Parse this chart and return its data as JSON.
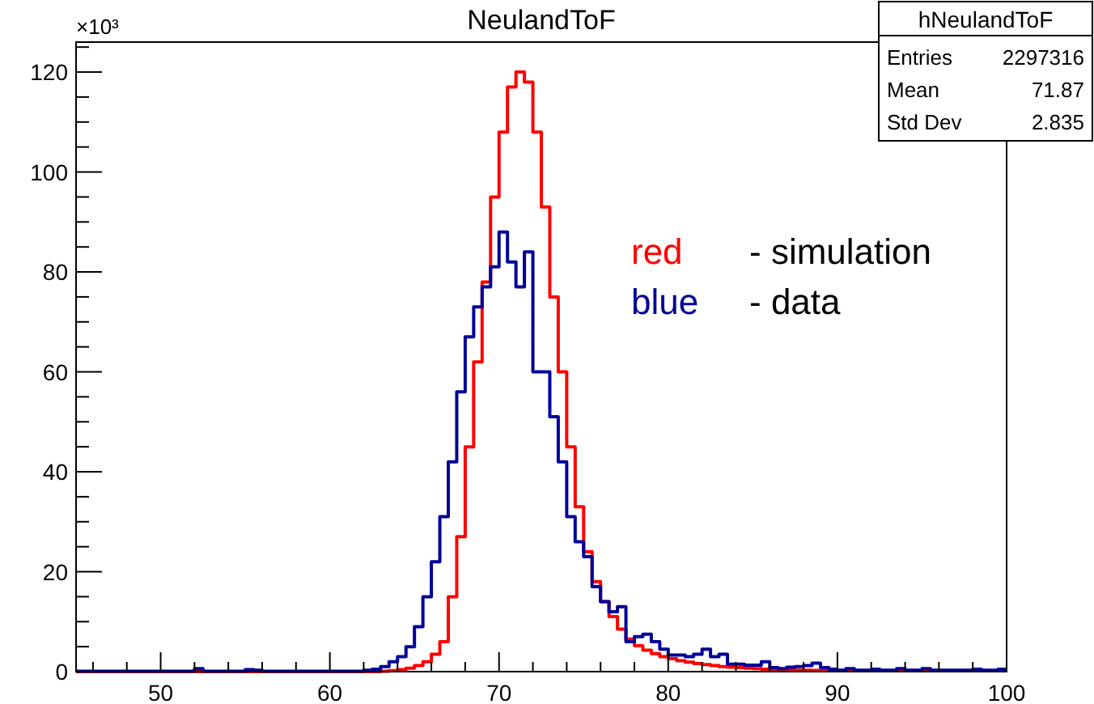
{
  "chart_data": {
    "type": "histogram",
    "title": "NeulandToF",
    "bins": [
      45,
      45.5,
      46,
      46.5,
      47,
      47.5,
      48,
      48.5,
      49,
      49.5,
      50,
      50.5,
      51,
      51.5,
      52,
      52.5,
      53,
      53.5,
      54,
      54.5,
      55,
      55.5,
      56,
      56.5,
      57,
      57.5,
      58,
      58.5,
      59,
      59.5,
      60,
      60.5,
      61,
      61.5,
      62,
      62.5,
      63,
      63.5,
      64,
      64.5,
      65,
      65.5,
      66,
      66.5,
      67,
      67.5,
      68,
      68.5,
      69,
      69.5,
      70,
      70.5,
      71,
      71.5,
      72,
      72.5,
      73,
      73.5,
      74,
      74.5,
      75,
      75.5,
      76,
      76.5,
      77,
      77.5,
      78,
      78.5,
      79,
      79.5,
      80,
      80.5,
      81,
      81.5,
      82,
      82.5,
      83,
      83.5,
      84,
      84.5,
      85,
      85.5,
      86,
      86.5,
      87,
      87.5,
      88,
      88.5,
      89,
      89.5,
      90,
      90.5,
      91,
      91.5,
      92,
      92.5,
      93,
      93.5,
      94,
      94.5,
      95,
      95.5,
      96,
      96.5,
      97,
      97.5,
      98,
      98.5,
      99,
      99.5,
      100
    ],
    "series": [
      {
        "color": "#ff0000",
        "values": [
          0,
          0,
          0,
          0,
          0,
          0,
          0,
          0,
          0,
          0,
          0,
          0,
          0,
          0,
          0,
          0,
          0,
          0,
          0,
          0,
          0,
          0,
          0,
          0,
          0,
          0,
          0,
          0,
          0,
          0,
          0,
          0,
          0,
          0,
          0,
          0,
          0.1,
          0.2,
          0.4,
          0.7,
          1.2,
          2,
          3.5,
          6,
          15,
          27,
          45,
          62,
          78,
          95,
          108,
          117,
          120,
          118,
          108,
          93,
          75,
          60,
          45,
          33,
          24,
          18,
          14,
          11,
          8.5,
          6.5,
          5.2,
          4.3,
          3.6,
          3,
          2.6,
          2.2,
          1.9,
          1.6,
          1.4,
          1.2,
          1,
          0.9,
          0.8,
          0.7,
          0.6,
          0.5,
          0.45,
          0.4,
          0.35,
          0.3,
          0.3,
          0.25,
          0.2,
          0.2,
          0.15,
          0.15,
          0.15,
          0.15,
          0.15,
          0.15,
          0.15,
          0.15,
          0.15,
          0.15,
          0.15,
          0.15,
          0.15,
          0.15,
          0.15,
          0.15,
          0.3,
          0.15,
          0.15,
          0.15
        ]
      },
      {
        "color": "#000099",
        "values": [
          0.1,
          0.1,
          0.1,
          0.1,
          0.1,
          0.1,
          0.1,
          0.1,
          0.1,
          0.1,
          0.1,
          0.1,
          0.1,
          0.1,
          0.6,
          0.1,
          0.1,
          0.1,
          0.1,
          0.1,
          0.4,
          0.3,
          0.1,
          0.1,
          0.1,
          0.1,
          0.1,
          0.1,
          0.1,
          0.1,
          0.1,
          0.1,
          0.1,
          0.1,
          0.3,
          0.5,
          1,
          2,
          3,
          5,
          9,
          15,
          22,
          31,
          42,
          56,
          67,
          73,
          77,
          81,
          88,
          82,
          77,
          84,
          60,
          60,
          51,
          42,
          31,
          26,
          23,
          17,
          14,
          12,
          13,
          6,
          7,
          7.5,
          6,
          4.5,
          3.3,
          3.3,
          3,
          3.5,
          4.5,
          3,
          3.5,
          1.5,
          1.5,
          1.3,
          1.3,
          2,
          0.8,
          0.6,
          0.9,
          1,
          1.2,
          1.7,
          0.8,
          0.5,
          0.3,
          0.6,
          0.3,
          0.3,
          0.5,
          0.3,
          0.3,
          0.6,
          0.3,
          0.3,
          0.6,
          0.3,
          0.3,
          0.3,
          0.3,
          0.3,
          0.5,
          0.3,
          0.3,
          0.5
        ]
      }
    ],
    "xlim": [
      45,
      100
    ],
    "xticks": [
      {
        "value": 46,
        "label": null
      },
      {
        "value": 48,
        "label": null
      },
      50,
      {
        "value": 52,
        "label": null
      },
      {
        "value": 54,
        "label": null
      },
      {
        "value": 56,
        "label": null
      },
      {
        "value": 58,
        "label": null
      },
      60,
      {
        "value": 62,
        "label": null
      },
      {
        "value": 64,
        "label": null
      },
      {
        "value": 66,
        "label": null
      },
      {
        "value": 68,
        "label": null
      },
      70,
      {
        "value": 72,
        "label": null
      },
      {
        "value": 74,
        "label": null
      },
      {
        "value": 76,
        "label": null
      },
      {
        "value": 78,
        "label": null
      },
      80,
      {
        "value": 82,
        "label": null
      },
      {
        "value": 84,
        "label": null
      },
      {
        "value": 86,
        "label": null
      },
      {
        "value": 88,
        "label": null
      },
      90,
      {
        "value": 92,
        "label": null
      },
      {
        "value": 94,
        "label": null
      },
      {
        "value": 96,
        "label": null
      },
      {
        "value": 98,
        "label": null
      },
      100
    ],
    "ylim": [
      0,
      126
    ],
    "yticks": [
      0,
      {
        "value": 5,
        "label": null
      },
      {
        "value": 10,
        "label": null
      },
      {
        "value": 15,
        "label": null
      },
      20,
      {
        "value": 25,
        "label": null
      },
      {
        "value": 30,
        "label": null
      },
      {
        "value": 35,
        "label": null
      },
      40,
      {
        "value": 45,
        "label": null
      },
      {
        "value": 50,
        "label": null
      },
      {
        "value": 55,
        "label": null
      },
      60,
      {
        "value": 65,
        "label": null
      },
      {
        "value": 70,
        "label": null
      },
      {
        "value": 75,
        "label": null
      },
      80,
      {
        "value": 85,
        "label": null
      },
      {
        "value": 90,
        "label": null
      },
      {
        "value": 95,
        "label": null
      },
      100,
      {
        "value": 105,
        "label": null
      },
      {
        "value": 110,
        "label": null
      },
      {
        "value": 115,
        "label": null
      },
      120,
      {
        "value": 125,
        "label": null
      }
    ],
    "annotations": [
      "×10³",
      "hNeulandToF",
      "Entries",
      "2297316",
      "Mean",
      "71.87",
      "Std Dev",
      "2.835",
      "red",
      "- simulation",
      "blue",
      "- data"
    ]
  }
}
